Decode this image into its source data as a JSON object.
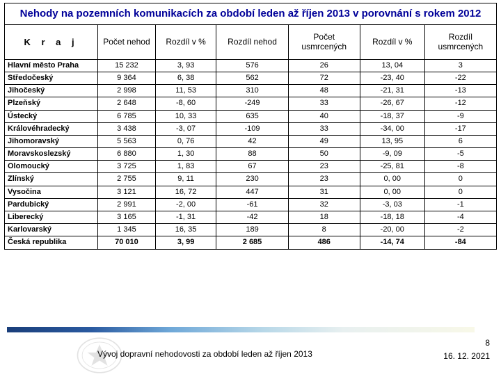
{
  "title": "Nehody na pozemních komunikacích za období leden až říjen 2013 v porovnání s rokem 2012",
  "columns": {
    "kraj": "K r a j",
    "pocet_nehod": "Počet nehod",
    "rozdil_pct1": "Rozdíl v %",
    "rozdil_nehod": "Rozdíl nehod",
    "pocet_usmrcenych": "Počet usmrcených",
    "rozdil_pct2": "Rozdíl v %",
    "rozdil_usmrcenych": "Rozdíl usmrcených"
  },
  "col_widths": [
    "130px",
    "80px",
    "85px",
    "100px",
    "100px",
    "90px",
    "100px"
  ],
  "rows": [
    {
      "kraj": "Hlavní město Praha",
      "pn": "15 232",
      "r1": "3, 93",
      "rn": "576",
      "pu": "26",
      "r2": "13, 04",
      "ru": "3"
    },
    {
      "kraj": "Středočeský",
      "pn": "9 364",
      "r1": "6, 38",
      "rn": "562",
      "pu": "72",
      "r2": "-23, 40",
      "ru": "-22"
    },
    {
      "kraj": "Jihočeský",
      "pn": "2 998",
      "r1": "11, 53",
      "rn": "310",
      "pu": "48",
      "r2": "-21, 31",
      "ru": "-13"
    },
    {
      "kraj": "Plzeňský",
      "pn": "2 648",
      "r1": "-8, 60",
      "rn": "-249",
      "pu": "33",
      "r2": "-26, 67",
      "ru": "-12"
    },
    {
      "kraj": "Ústecký",
      "pn": "6 785",
      "r1": "10, 33",
      "rn": "635",
      "pu": "40",
      "r2": "-18, 37",
      "ru": "-9"
    },
    {
      "kraj": "Královéhradecký",
      "pn": "3 438",
      "r1": "-3, 07",
      "rn": "-109",
      "pu": "33",
      "r2": "-34, 00",
      "ru": "-17"
    },
    {
      "kraj": "Jihomoravský",
      "pn": "5 563",
      "r1": "0, 76",
      "rn": "42",
      "pu": "49",
      "r2": "13, 95",
      "ru": "6"
    },
    {
      "kraj": "Moravskoslezský",
      "pn": "6 880",
      "r1": "1, 30",
      "rn": "88",
      "pu": "50",
      "r2": "-9, 09",
      "ru": "-5"
    },
    {
      "kraj": "Olomoucký",
      "pn": "3 725",
      "r1": "1, 83",
      "rn": "67",
      "pu": "23",
      "r2": "-25, 81",
      "ru": "-8"
    },
    {
      "kraj": "Zlínský",
      "pn": "2 755",
      "r1": "9, 11",
      "rn": "230",
      "pu": "23",
      "r2": "0, 00",
      "ru": "0"
    },
    {
      "kraj": "Vysočina",
      "pn": "3 121",
      "r1": "16, 72",
      "rn": "447",
      "pu": "31",
      "r2": "0, 00",
      "ru": "0"
    },
    {
      "kraj": "Pardubický",
      "pn": "2 991",
      "r1": "-2, 00",
      "rn": "-61",
      "pu": "32",
      "r2": "-3, 03",
      "ru": "-1"
    },
    {
      "kraj": "Liberecký",
      "pn": "3 165",
      "r1": "-1, 31",
      "rn": "-42",
      "pu": "18",
      "r2": "-18, 18",
      "ru": "-4"
    },
    {
      "kraj": "Karlovarský",
      "pn": "1 345",
      "r1": "16, 35",
      "rn": "189",
      "pu": "8",
      "r2": "-20, 00",
      "ru": "-2"
    }
  ],
  "total": {
    "kraj": "Česká republika",
    "pn": "70 010",
    "r1": "3, 99",
    "rn": "2 685",
    "pu": "486",
    "r2": "-14, 74",
    "ru": "-84"
  },
  "footer": {
    "page": "8",
    "date": "16. 12. 2021",
    "caption": "Vývoj dopravní nehodovosti za období leden až říjen 2013"
  },
  "style": {
    "title_color": "#000099",
    "border_color": "#000000",
    "gradient": [
      "#1A3E7A",
      "#2A5AA0",
      "#6FA8D8",
      "#B8D8E8",
      "#E8F0F0",
      "#F8F8E8"
    ]
  }
}
